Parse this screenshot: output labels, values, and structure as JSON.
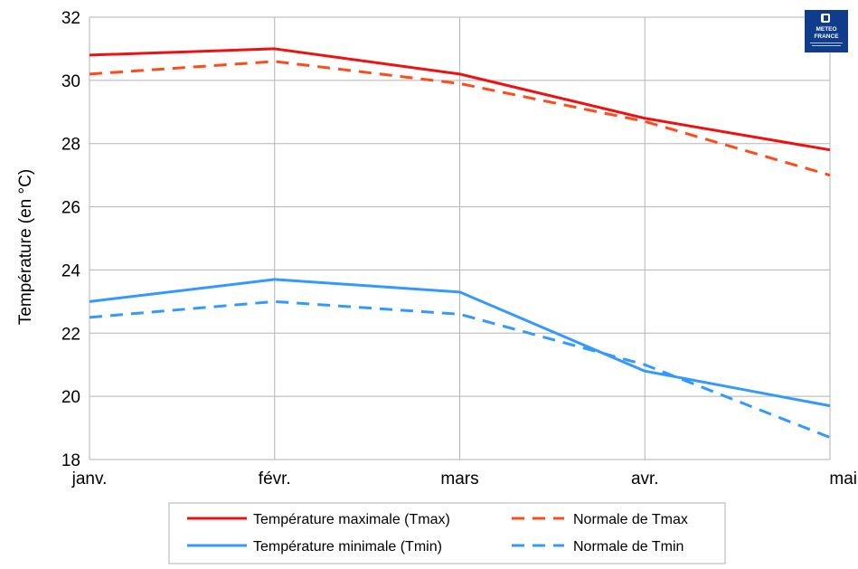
{
  "chart_data": {
    "type": "line",
    "categories": [
      "janv.",
      "févr.",
      "mars",
      "avr.",
      "mai"
    ],
    "ylabel": "Température (en °C)",
    "xlabel": "",
    "ylim": [
      18,
      32
    ],
    "yticks": [
      "18",
      "20",
      "22",
      "24",
      "26",
      "28",
      "30",
      "32"
    ],
    "grid": true,
    "legend_position": "bottom",
    "series": [
      {
        "name": "Température maximale (Tmax)",
        "values": [
          30.8,
          31.0,
          30.2,
          28.8,
          27.8
        ],
        "color": "#ee1111",
        "style": "solid"
      },
      {
        "name": "Normale de Tmax",
        "values": [
          30.2,
          30.6,
          29.9,
          28.7,
          27.0
        ],
        "color": "#ff4a1a",
        "style": "dashed"
      },
      {
        "name": "Température minimale (Tmin)",
        "values": [
          23.0,
          23.7,
          23.3,
          20.8,
          19.7
        ],
        "color": "#3399ff",
        "style": "solid"
      },
      {
        "name": "Normale de Tmin",
        "values": [
          22.5,
          23.0,
          22.6,
          21.0,
          18.7
        ],
        "color": "#3399ff",
        "style": "dashed"
      }
    ]
  },
  "logo": {
    "name": "METEO FRANCE",
    "line1": "METEO",
    "line2": "FRANCE",
    "color": "#0f3c8c"
  }
}
